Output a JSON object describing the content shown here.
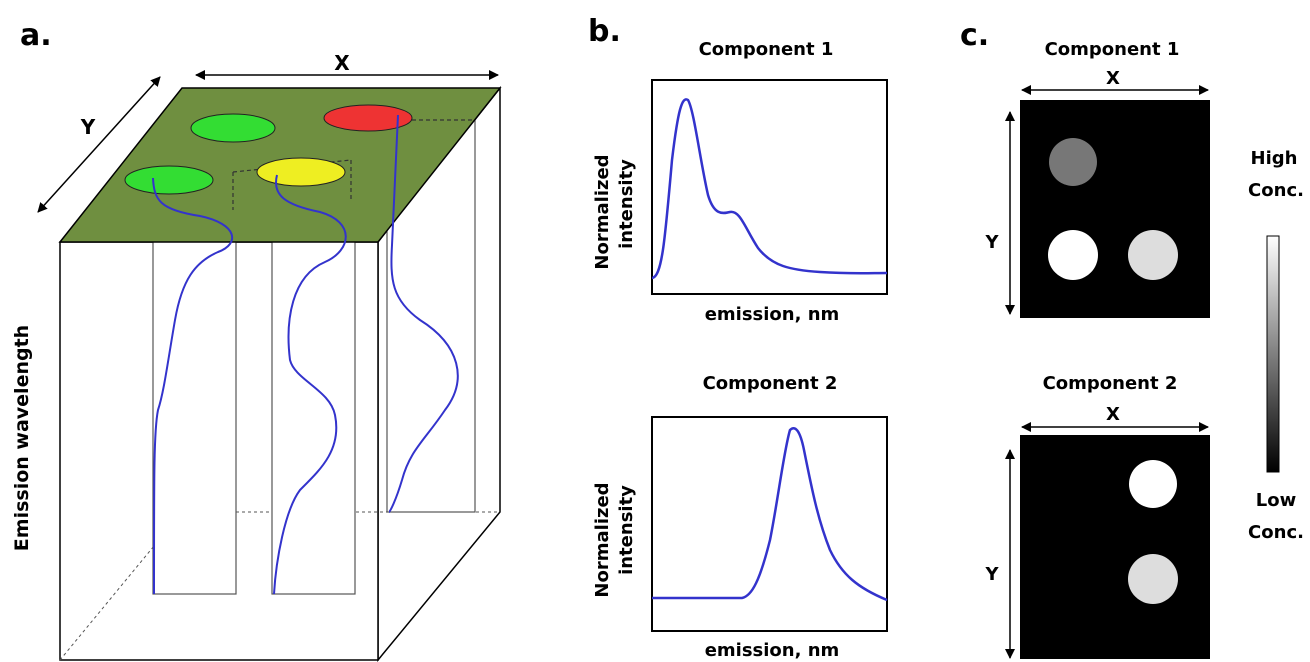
{
  "panels": {
    "a": {
      "letter": "a.",
      "axis_x": "X",
      "axis_y": "Y",
      "axis_z": "Emission wavelength",
      "spots": [
        {
          "name": "green-spot-back",
          "color": "#33dd33"
        },
        {
          "name": "red-spot",
          "color": "#ee3333"
        },
        {
          "name": "green-spot-front",
          "color": "#33dd33"
        },
        {
          "name": "yellow-spot",
          "color": "#eeee22"
        }
      ],
      "top_color": "#6f8f40",
      "curve_color": "#3333cc"
    },
    "b": {
      "letter": "b.",
      "plot1_title": "Component 1",
      "plot2_title": "Component 2",
      "ylabel_line1": "Normalized",
      "ylabel_line2": "intensity",
      "xlabel": "emission, nm"
    },
    "c": {
      "letter": "c.",
      "map1_title": "Component 1",
      "map2_title": "Component 2",
      "axis_x": "X",
      "axis_y": "Y",
      "scale_high_1": "High",
      "scale_high_2": "Conc.",
      "scale_low_1": "Low",
      "scale_low_2": "Conc."
    }
  }
}
